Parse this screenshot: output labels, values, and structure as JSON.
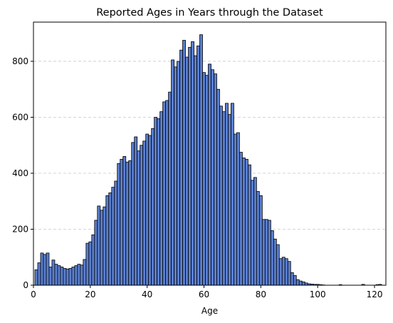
{
  "chart_data": {
    "type": "bar",
    "title": "Reported Ages in Years through the Dataset",
    "xlabel": "Age",
    "ylabel": "",
    "xlim": [
      0,
      124
    ],
    "ylim": [
      0,
      940
    ],
    "x_ticks": [
      0,
      20,
      40,
      60,
      80,
      100,
      120
    ],
    "y_ticks": [
      0,
      200,
      400,
      600,
      800
    ],
    "grid": "y, dashed",
    "bar_color": "#5b7fcf",
    "edge_color": "#000000",
    "grid_color": "#c8c8c8",
    "bin_width": 1,
    "x": [
      1,
      2,
      3,
      4,
      5,
      6,
      7,
      8,
      9,
      10,
      11,
      12,
      13,
      14,
      15,
      16,
      17,
      18,
      19,
      20,
      21,
      22,
      23,
      24,
      25,
      26,
      27,
      28,
      29,
      30,
      31,
      32,
      33,
      34,
      35,
      36,
      37,
      38,
      39,
      40,
      41,
      42,
      43,
      44,
      45,
      46,
      47,
      48,
      49,
      50,
      51,
      52,
      53,
      54,
      55,
      56,
      57,
      58,
      59,
      60,
      61,
      62,
      63,
      64,
      65,
      66,
      67,
      68,
      69,
      70,
      71,
      72,
      73,
      74,
      75,
      76,
      77,
      78,
      79,
      80,
      81,
      82,
      83,
      84,
      85,
      86,
      87,
      88,
      89,
      90,
      91,
      92,
      93,
      94,
      95,
      96,
      97,
      98,
      99,
      100,
      101,
      102,
      103,
      104,
      105,
      106,
      107,
      108,
      109,
      110,
      111,
      112,
      113,
      114,
      115,
      116,
      117,
      118,
      119,
      120,
      121,
      122
    ],
    "values": [
      55,
      80,
      115,
      110,
      115,
      65,
      90,
      75,
      70,
      65,
      60,
      58,
      60,
      65,
      70,
      75,
      72,
      92,
      150,
      155,
      180,
      232,
      283,
      268,
      280,
      320,
      330,
      350,
      372,
      435,
      450,
      460,
      440,
      445,
      510,
      530,
      480,
      500,
      515,
      540,
      535,
      560,
      600,
      595,
      620,
      655,
      660,
      690,
      805,
      780,
      800,
      840,
      875,
      815,
      850,
      870,
      820,
      855,
      895,
      760,
      750,
      790,
      770,
      755,
      700,
      640,
      620,
      650,
      610,
      650,
      540,
      545,
      475,
      455,
      450,
      430,
      375,
      385,
      335,
      320,
      235,
      235,
      232,
      195,
      165,
      145,
      95,
      100,
      95,
      85,
      45,
      35,
      20,
      15,
      12,
      8,
      5,
      4,
      3,
      3,
      2,
      1,
      0,
      0,
      0,
      0,
      0,
      2,
      0,
      0,
      0,
      0,
      0,
      0,
      0,
      3,
      0,
      0,
      0,
      0,
      2,
      3
    ]
  }
}
